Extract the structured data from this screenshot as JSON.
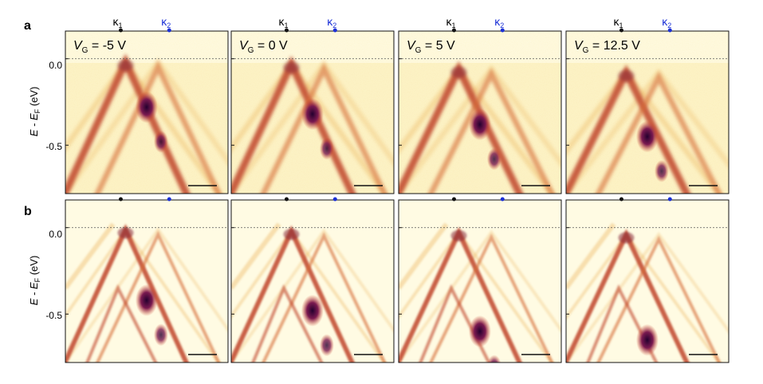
{
  "figure": {
    "rows": [
      {
        "label": "a",
        "kind": "measured",
        "panels": [
          {
            "vg_label": "= -5 V",
            "k1_center": 0.0,
            "k2_center": 0.3,
            "dirac_offset": 0.05,
            "hotspot_e": -0.28
          },
          {
            "vg_label": "= 0 V",
            "k1_center": 0.0,
            "k2_center": 0.3,
            "dirac_offset": 0.08,
            "hotspot_e": -0.32
          },
          {
            "vg_label": "= 5 V",
            "k1_center": 0.0,
            "k2_center": 0.3,
            "dirac_offset": 0.15,
            "hotspot_e": -0.38
          },
          {
            "vg_label": "= 12.5 V",
            "k1_center": 0.0,
            "k2_center": 0.3,
            "dirac_offset": 0.2,
            "hotspot_e": -0.45
          }
        ]
      },
      {
        "label": "b",
        "kind": "simulated",
        "panels": [
          {
            "k1_center": 0.0,
            "k2_center": 0.3,
            "dirac_offset": 0.03,
            "hotspot_e": -0.42
          },
          {
            "k1_center": 0.0,
            "k2_center": 0.3,
            "dirac_offset": 0.05,
            "hotspot_e": -0.48
          },
          {
            "k1_center": 0.0,
            "k2_center": 0.3,
            "dirac_offset": 0.07,
            "hotspot_e": -0.6
          },
          {
            "k1_center": 0.0,
            "k2_center": 0.3,
            "dirac_offset": 0.1,
            "hotspot_e": -0.65
          }
        ]
      }
    ],
    "axis": {
      "ylabel_main": "E - E",
      "ylabel_sub": "F",
      "ylabel_unit": " (eV)",
      "ylim": [
        -0.78,
        0.16
      ],
      "yticks": [
        0.0,
        -0.5
      ],
      "ytick_labels": [
        "0.0",
        "-0.5"
      ],
      "fermi_level": 0.0
    },
    "top_labels": {
      "k1": "κ",
      "k1_sub": "1",
      "k2": "κ",
      "k2_sub": "2",
      "vg_symbol": "V",
      "vg_sub": "G"
    },
    "colors": {
      "k1_marker": "#111111",
      "k2_marker": "#1a2fd6",
      "k2_label": "#1a2fd6",
      "band_high": "#24002e",
      "band_mid": "#d6462a",
      "band_low": "#f5d870",
      "background": "#fffbe3"
    }
  }
}
